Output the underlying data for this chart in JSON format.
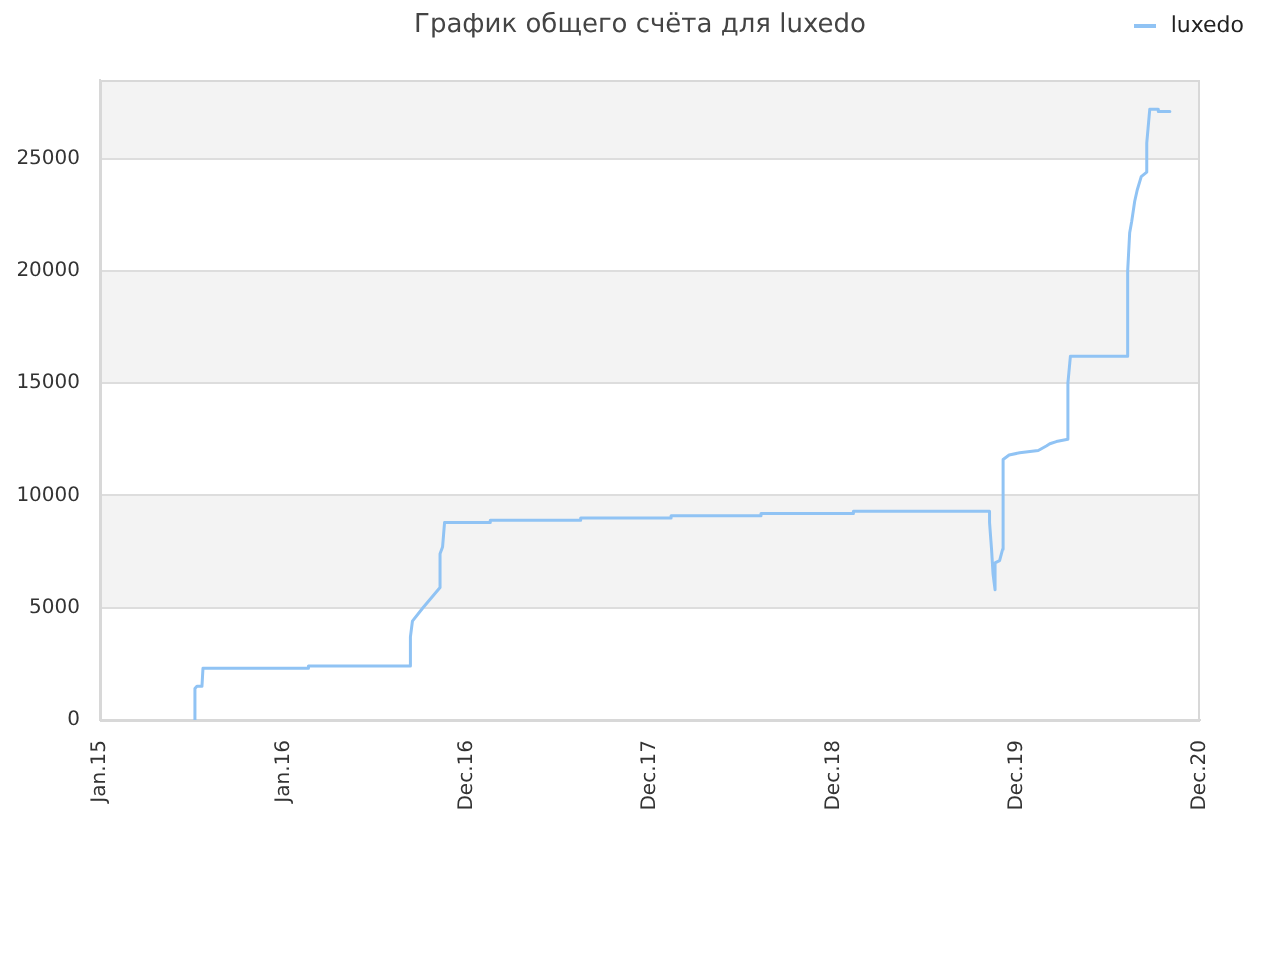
{
  "chart_data": {
    "type": "line",
    "title": "График общего счёта для luxedo",
    "x": [
      "2015-07-09",
      "2015-07-09",
      "2015-07-13",
      "2015-07-23",
      "2015-07-25",
      "2016-02-20",
      "2016-02-20",
      "2016-09-10",
      "2016-09-10",
      "2016-09-14",
      "2016-10-05",
      "2016-11-08",
      "2016-11-08",
      "2016-11-13",
      "2016-11-17",
      "2017-02-16",
      "2017-02-16",
      "2017-08-15",
      "2017-08-15",
      "2018-02-11",
      "2018-02-11",
      "2018-08-09",
      "2018-08-09",
      "2019-02-09",
      "2019-02-09",
      "2019-08-10",
      "2019-08-10",
      "2019-11-07",
      "2019-11-07",
      "2019-11-11",
      "2019-11-14",
      "2019-11-18",
      "2019-11-18",
      "2019-11-27",
      "2019-12-03",
      "2019-12-04",
      "2019-12-16",
      "2020-01-06",
      "2020-02-12",
      "2020-02-28",
      "2020-03-06",
      "2020-03-19",
      "2020-04-11",
      "2020-04-11",
      "2020-04-16",
      "2020-04-16",
      "2020-08-08",
      "2020-08-08",
      "2020-08-12",
      "2020-08-16",
      "2020-08-22",
      "2020-08-27",
      "2020-09-04",
      "2020-09-15",
      "2020-09-15",
      "2020-09-21",
      "2020-10-08",
      "2020-10-08",
      "2020-10-31"
    ],
    "series": [
      {
        "name": "luxedo",
        "color": "#90c3f4",
        "values": [
          0,
          1400,
          1500,
          1500,
          2300,
          2300,
          2400,
          2400,
          3700,
          4400,
          5000,
          5900,
          7400,
          7700,
          8800,
          8800,
          8900,
          8900,
          9000,
          9000,
          9100,
          9100,
          9200,
          9200,
          9300,
          9300,
          9300,
          9300,
          8800,
          7600,
          6500,
          5800,
          7000,
          7100,
          7600,
          11600,
          11800,
          11900,
          12000,
          12200,
          12300,
          12400,
          12500,
          15000,
          16200,
          16200,
          16200,
          20000,
          21700,
          22200,
          23100,
          23600,
          24200,
          24400,
          25700,
          27200,
          27200,
          27100,
          27100
        ]
      }
    ],
    "xlim": [
      "2015-01-01",
      "2020-12-30"
    ],
    "xticks": [
      {
        "value": "2015-01-01",
        "label": "Jan.15"
      },
      {
        "value": "2016-01-01",
        "label": "Jan.16"
      },
      {
        "value": "2016-12-31",
        "label": "Dec.16"
      },
      {
        "value": "2017-12-31",
        "label": "Dec.17"
      },
      {
        "value": "2018-12-31",
        "label": "Dec.18"
      },
      {
        "value": "2019-12-31",
        "label": "Dec.19"
      },
      {
        "value": "2020-12-30",
        "label": "Dec.20"
      }
    ],
    "ylim": [
      0,
      28500
    ],
    "yticks": [
      0,
      5000,
      10000,
      15000,
      20000,
      25000
    ],
    "grid": "y",
    "legend": "top right"
  }
}
